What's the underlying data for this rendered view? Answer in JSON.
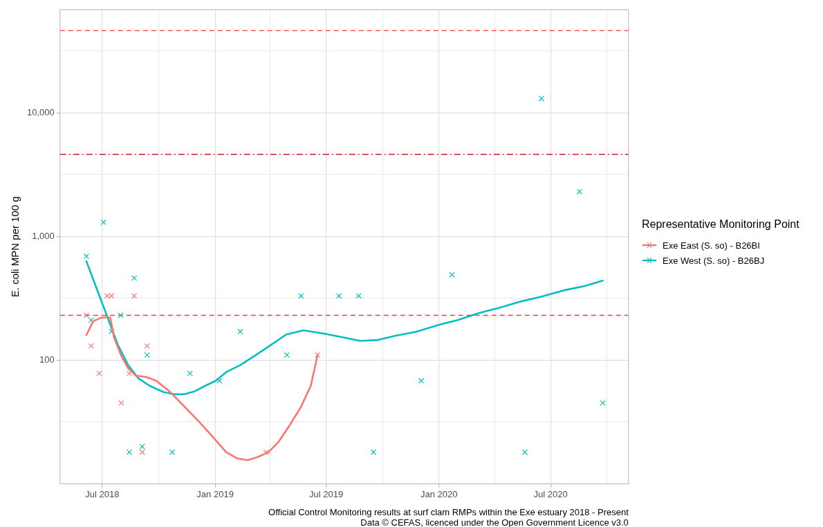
{
  "chart_data": {
    "type": "scatter",
    "ylabel": "E. coli MPN per 100 g",
    "legend_title": "Representative Monitoring Point",
    "legend": "right",
    "grid": true,
    "log": "y",
    "marker": "cross",
    "xlim": [
      "2018-04-23",
      "2020-11-05"
    ],
    "xticks": [
      {
        "value": "2018-07-01",
        "label": "Jul 2018"
      },
      {
        "value": "2018-10-01",
        "label": null
      },
      {
        "value": "2019-01-01",
        "label": "Jan 2019"
      },
      {
        "value": "2019-04-01",
        "label": null
      },
      {
        "value": "2019-07-01",
        "label": "Jul 2019"
      },
      {
        "value": "2019-10-01",
        "label": null
      },
      {
        "value": "2020-01-01",
        "label": "Jan 2020"
      },
      {
        "value": "2020-04-01",
        "label": null
      },
      {
        "value": "2020-07-01",
        "label": "Jul 2020"
      },
      {
        "value": "2020-10-01",
        "label": null
      }
    ],
    "ylim": [
      10,
      68000
    ],
    "yticks": [
      {
        "value": 31.6,
        "label": null
      },
      {
        "value": 100,
        "label": "100"
      },
      {
        "value": 316,
        "label": null
      },
      {
        "value": 1000,
        "label": "1,000"
      },
      {
        "value": 3160,
        "label": null
      },
      {
        "value": 10000,
        "label": "10,000"
      },
      {
        "value": 31600,
        "label": null
      }
    ],
    "ref_lines": [
      {
        "axis": "y",
        "value": 230,
        "color": "#f8393a",
        "line_style": "dashed"
      },
      {
        "axis": "y",
        "value": 4600,
        "color": "#c8151b",
        "line_style": "dashdot"
      },
      {
        "axis": "y",
        "value": 46000,
        "color": "#f8393a",
        "line_style": "dashed"
      }
    ],
    "series": [
      {
        "name": "Exe East  (S. so) - B26BI",
        "color": "#f8766d",
        "x": [
          "2018-06-05",
          "2018-06-13",
          "2018-06-26",
          "2018-07-09",
          "2018-07-16",
          "2018-08-01",
          "2018-08-14",
          "2018-08-22",
          "2018-09-04",
          "2018-09-12",
          "2019-03-25",
          "2019-06-17"
        ],
        "values": [
          230,
          130,
          78,
          330,
          330,
          45,
          78,
          330,
          18,
          130,
          18,
          110
        ]
      },
      {
        "name": "Exe West (S. so) - B26BJ",
        "color": "#00bfc4",
        "x": [
          "2018-06-05",
          "2018-06-13",
          "2018-07-03",
          "2018-07-16",
          "2018-07-31",
          "2018-08-14",
          "2018-08-22",
          "2018-09-04",
          "2018-09-12",
          "2018-10-23",
          "2018-11-21",
          "2019-01-08",
          "2019-02-11",
          "2019-04-28",
          "2019-05-21",
          "2019-07-22",
          "2019-08-23",
          "2019-09-16",
          "2019-12-03",
          "2020-01-22",
          "2020-05-20",
          "2020-06-16",
          "2020-08-17",
          "2020-09-24"
        ],
        "values": [
          690,
          210,
          1300,
          170,
          230,
          18,
          460,
          20,
          110,
          18,
          78,
          68,
          170,
          110,
          330,
          330,
          330,
          18,
          68,
          490,
          18,
          13000,
          2300,
          45
        ]
      },
      {
        "type": "line",
        "marker": "none",
        "color": "#f8766d",
        "x": [
          "2018-06-05",
          "2018-06-16",
          "2018-06-28",
          "2018-07-09",
          "2018-07-14",
          "2018-07-20",
          "2018-08-01",
          "2018-08-12",
          "2018-08-24",
          "2018-09-10",
          "2018-09-27",
          "2018-10-20",
          "2018-11-12",
          "2018-12-05",
          "2018-12-28",
          "2019-01-19",
          "2019-02-06",
          "2019-02-23",
          "2019-03-12",
          "2019-03-29",
          "2019-04-15",
          "2019-05-02",
          "2019-05-20",
          "2019-06-06",
          "2019-06-17"
        ],
        "values": [
          159,
          206,
          219,
          222,
          220,
          153,
          108,
          86,
          75,
          73,
          68,
          55,
          42,
          32,
          24,
          18,
          16,
          15.5,
          16.5,
          18,
          22,
          29.5,
          41,
          62,
          110
        ]
      },
      {
        "type": "line",
        "marker": "none",
        "color": "#00bfc4",
        "x": [
          "2018-06-05",
          "2018-06-22",
          "2018-07-09",
          "2018-07-26",
          "2018-08-12",
          "2018-08-29",
          "2018-09-16",
          "2018-10-09",
          "2018-10-26",
          "2018-11-12",
          "2018-11-29",
          "2018-12-16",
          "2019-01-02",
          "2019-01-19",
          "2019-02-11",
          "2019-03-18",
          "2019-04-27",
          "2019-05-25",
          "2019-06-29",
          "2019-08-02",
          "2019-08-25",
          "2019-09-22",
          "2019-10-21",
          "2019-11-24",
          "2020-01-01",
          "2020-02-01",
          "2020-03-06",
          "2020-04-10",
          "2020-05-14",
          "2020-06-17",
          "2020-07-22",
          "2020-08-25",
          "2020-09-24"
        ],
        "values": [
          630,
          376,
          225,
          134,
          91,
          71,
          62,
          55,
          53,
          53,
          56,
          62,
          68,
          80,
          91,
          118,
          161,
          174,
          163,
          151,
          143,
          145,
          157,
          169,
          193,
          211,
          240,
          266,
          298,
          327,
          366,
          396,
          439
        ]
      }
    ],
    "annotations": [
      "Official Control Monitoring results at surf clam RMPs within the Exe estuary 2018 - Present",
      "Data © CEFAS, licenced under the Open Government Licence v3.0"
    ]
  }
}
